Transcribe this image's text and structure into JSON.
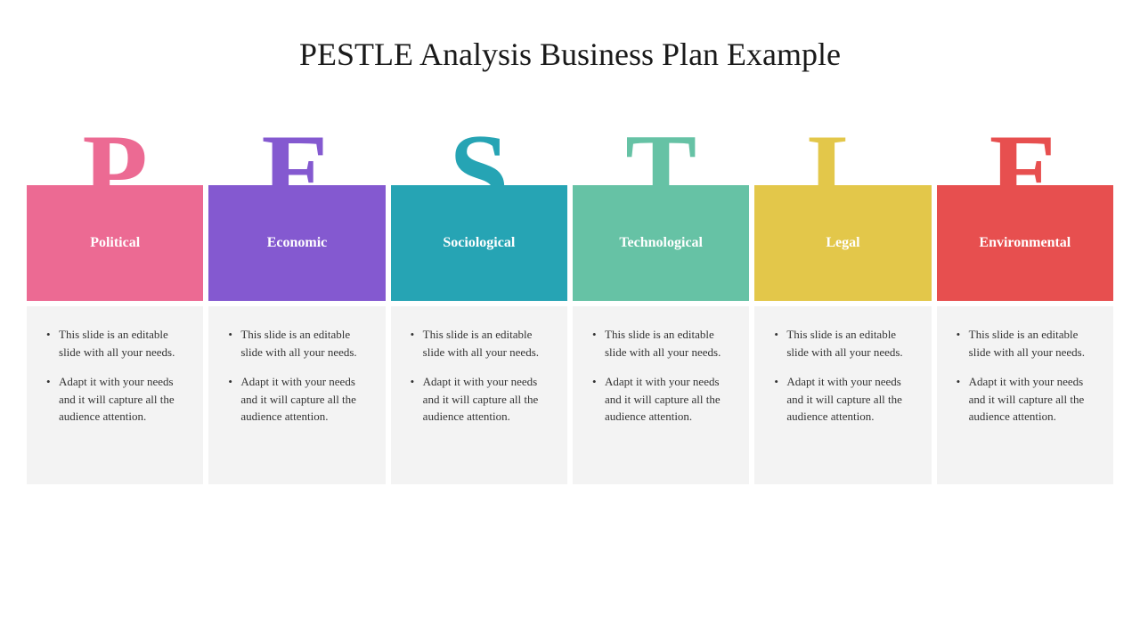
{
  "title": "PESTLE Analysis Business Plan Example",
  "background_color": "#ffffff",
  "content_bg_color": "#f3f3f3",
  "title_fontsize": 36,
  "letter_fontsize": 120,
  "label_fontsize": 16,
  "bullet_fontsize": 13,
  "columns": [
    {
      "letter": "P",
      "label": "Political",
      "color": "#ec6a93",
      "bullets": [
        "This slide is an editable slide with all your needs.",
        "Adapt it with your needs and it will capture all the audience attention."
      ]
    },
    {
      "letter": "E",
      "label": "Economic",
      "color": "#8459d0",
      "bullets": [
        "This slide is an editable slide with all your needs.",
        "Adapt it with your needs and it will capture all the audience attention."
      ]
    },
    {
      "letter": "S",
      "label": "Sociological",
      "color": "#26a4b4",
      "bullets": [
        "This slide is an editable slide with all your needs.",
        "Adapt it with your needs and it will capture all the audience attention."
      ]
    },
    {
      "letter": "T",
      "label": "Technological",
      "color": "#66c2a5",
      "bullets": [
        "This slide is an editable slide with all your needs.",
        "Adapt it with your needs and it will capture all the audience attention."
      ]
    },
    {
      "letter": "L",
      "label": "Legal",
      "color": "#e3c74a",
      "bullets": [
        "This slide is an editable slide with all your needs.",
        "Adapt it with your needs and it will capture all the audience attention."
      ]
    },
    {
      "letter": "E",
      "label": "Environmental",
      "color": "#e74f4f",
      "bullets": [
        "This slide is an editable slide with all your needs.",
        "Adapt it with your needs and it will capture all the audience attention."
      ]
    }
  ]
}
